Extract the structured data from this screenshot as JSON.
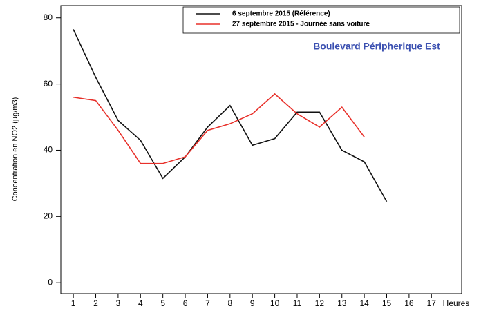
{
  "chart_data": {
    "type": "line",
    "annotation": "Boulevard Péripherique Est",
    "ylabel": "Concentration en NO2 (µg/m3)",
    "xlabel": "Heures",
    "x": [
      1,
      2,
      3,
      4,
      5,
      6,
      7,
      8,
      9,
      10,
      11,
      12,
      13,
      14,
      15
    ],
    "series": [
      {
        "name": "6 septembre 2015 (Référence)",
        "color": "#111111",
        "values": [
          76.5,
          62,
          49,
          43,
          31.5,
          38,
          47,
          53.5,
          41.5,
          43.5,
          51.5,
          51.5,
          40,
          36.5,
          24.5
        ]
      },
      {
        "name": "27 septembre 2015 - Journée sans voiture",
        "color": "#e8302a",
        "values": [
          56,
          55,
          46,
          36,
          36,
          38,
          46,
          48,
          51,
          57,
          51,
          47,
          53,
          44,
          null
        ]
      }
    ],
    "xlim": [
      0.44,
      18.35
    ],
    "xticks": [
      1,
      2,
      3,
      4,
      5,
      6,
      7,
      8,
      9,
      10,
      11,
      12,
      13,
      14,
      15,
      16,
      17
    ],
    "ylim": [
      -3.3,
      83.7
    ],
    "yticks": [
      0,
      20,
      40,
      60,
      80
    ],
    "legend": "top-right"
  }
}
